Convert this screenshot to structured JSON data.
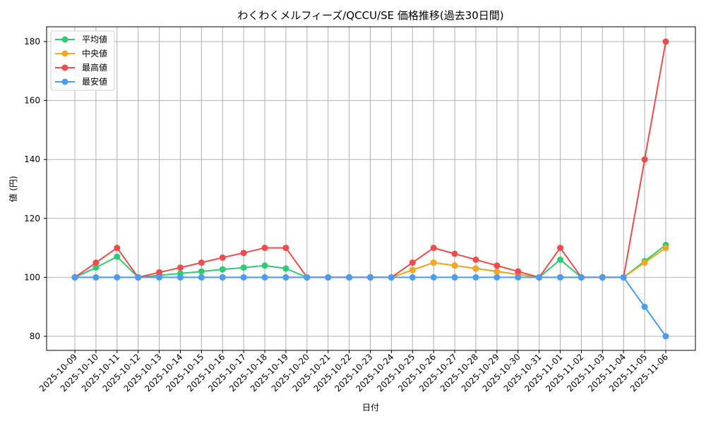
{
  "chart_data": {
    "type": "line",
    "title": "わくわくメルフィーズ/QCCU/SE 価格推移(過去30日間)",
    "xlabel": "日付",
    "ylabel": "値 (円)",
    "ylim": [
      75,
      185
    ],
    "yticks": [
      80,
      100,
      120,
      140,
      160,
      180
    ],
    "grid": true,
    "legend_position": "upper left",
    "categories": [
      "2025-10-09",
      "2025-10-10",
      "2025-10-11",
      "2025-10-12",
      "2025-10-13",
      "2025-10-14",
      "2025-10-15",
      "2025-10-16",
      "2025-10-17",
      "2025-10-18",
      "2025-10-19",
      "2025-10-20",
      "2025-10-21",
      "2025-10-22",
      "2025-10-23",
      "2025-10-24",
      "2025-10-25",
      "2025-10-26",
      "2025-10-27",
      "2025-10-28",
      "2025-10-29",
      "2025-10-30",
      "2025-10-31",
      "2025-11-01",
      "2025-11-02",
      "2025-11-03",
      "2025-11-04",
      "2025-11-05",
      "2025-11-06"
    ],
    "series": [
      {
        "name": "平均値",
        "color": "#2ecc71",
        "values": [
          100,
          103.3,
          107,
          100,
          100.7,
          101.3,
          102,
          102.7,
          103.3,
          104,
          103,
          100,
          100,
          100,
          100,
          100,
          102.5,
          105,
          104,
          103,
          102,
          101,
          100,
          106,
          100,
          100,
          100,
          105.5,
          111
        ]
      },
      {
        "name": "中央値",
        "color": "#f5a623",
        "values": [
          100,
          100,
          100,
          100,
          100,
          100,
          100,
          100,
          100,
          100,
          100,
          100,
          100,
          100,
          100,
          100,
          102.5,
          105,
          104,
          103,
          102,
          101,
          100,
          100,
          100,
          100,
          100,
          105,
          110
        ]
      },
      {
        "name": "最高値",
        "color": "#f24b4b",
        "values": [
          100,
          105,
          110,
          100,
          101.7,
          103.3,
          105,
          106.7,
          108.3,
          110,
          110,
          100,
          100,
          100,
          100,
          100,
          105,
          110,
          108,
          106,
          104,
          102,
          100,
          110,
          100,
          100,
          100,
          140,
          180
        ]
      },
      {
        "name": "最安値",
        "color": "#4a9cf5",
        "values": [
          100,
          100,
          100,
          100,
          100,
          100,
          100,
          100,
          100,
          100,
          100,
          100,
          100,
          100,
          100,
          100,
          100,
          100,
          100,
          100,
          100,
          100,
          100,
          100,
          100,
          100,
          100,
          90,
          80
        ]
      }
    ]
  }
}
